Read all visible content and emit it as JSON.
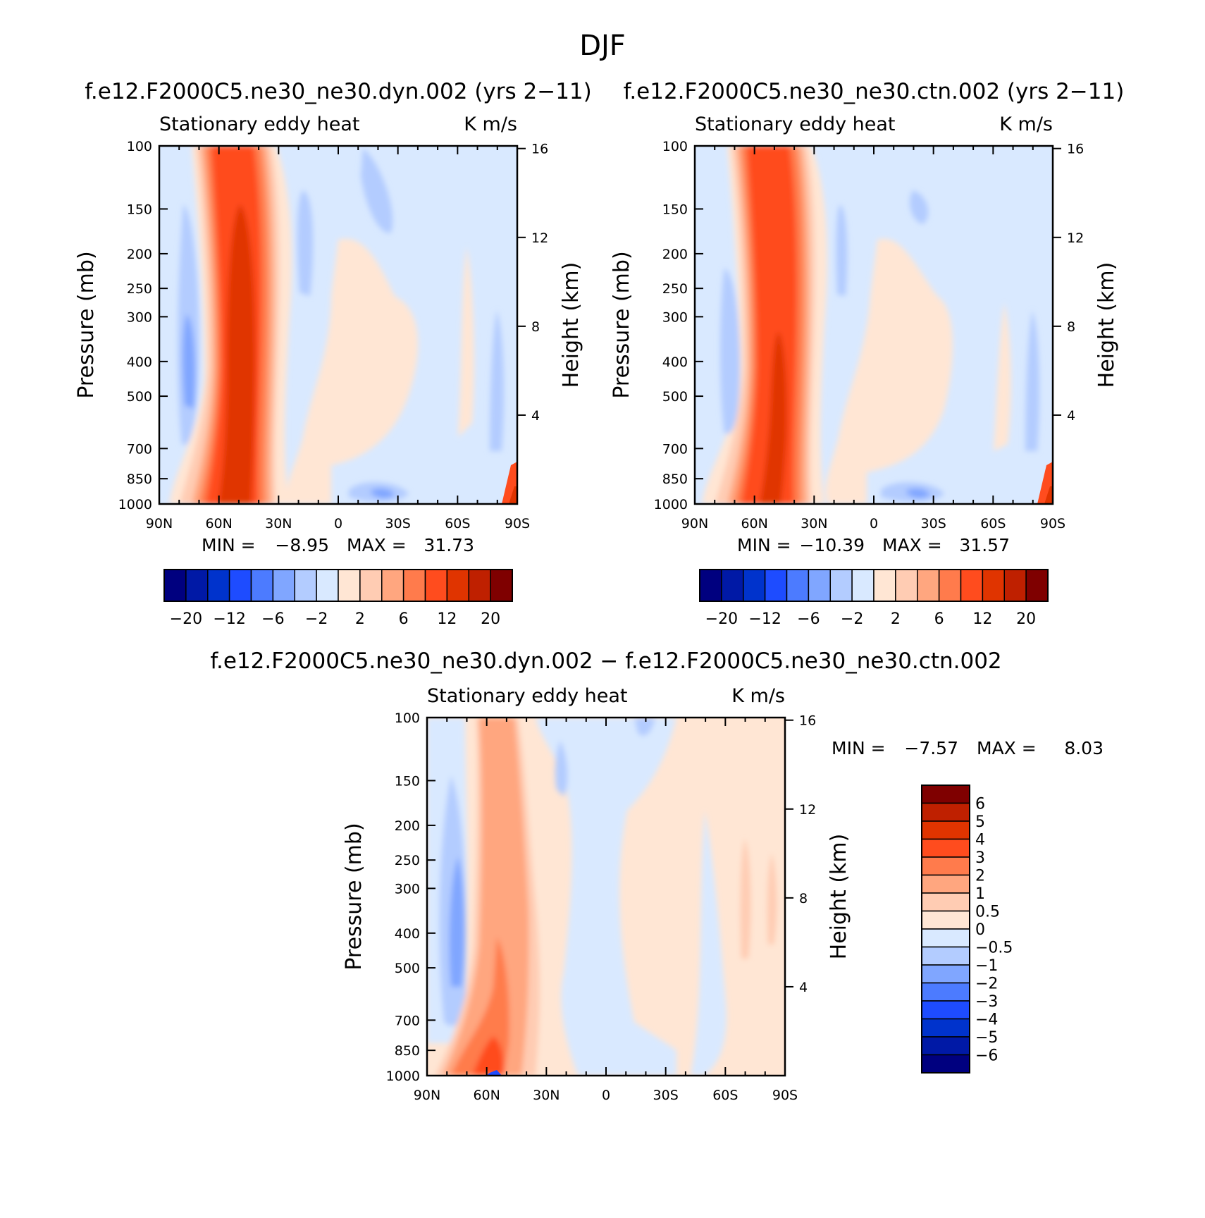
{
  "figure": {
    "title": "DJF",
    "diff_title": "f.e12.F2000C5.ne30_ne30.dyn.002 − f.e12.F2000C5.ne30_ne30.ctn.002"
  },
  "chart_data": [
    {
      "type": "heatmap",
      "title": "f.e12.F2000C5.ne30_ne30.dyn.002 (yrs 2−11)",
      "left_label": "Stationary eddy heat",
      "right_label": "K m/s",
      "ylabel": "Pressure (mb)",
      "y2label": "Height (km)",
      "x_ticks": [
        "90N",
        "60N",
        "30N",
        "0",
        "30S",
        "60S",
        "90S"
      ],
      "y_ticks": [
        "100",
        "150",
        "200",
        "250",
        "300",
        "400",
        "500",
        "700",
        "850",
        "1000"
      ],
      "y2_ticks": [
        "16",
        "12",
        "8",
        "4"
      ],
      "min_text": "MIN =",
      "min_value": "−8.95",
      "max_text": "MAX =",
      "max_value": "31.73",
      "colorbar_labels": [
        "−20",
        "−12",
        "−6",
        "−2",
        "2",
        "6",
        "12",
        "20"
      ]
    },
    {
      "type": "heatmap",
      "title": "f.e12.F2000C5.ne30_ne30.ctn.002 (yrs 2−11)",
      "left_label": "Stationary eddy heat",
      "right_label": "K m/s",
      "ylabel": "Pressure (mb)",
      "y2label": "Height (km)",
      "x_ticks": [
        "90N",
        "60N",
        "30N",
        "0",
        "30S",
        "60S",
        "90S"
      ],
      "y_ticks": [
        "100",
        "150",
        "200",
        "250",
        "300",
        "400",
        "500",
        "700",
        "850",
        "1000"
      ],
      "y2_ticks": [
        "16",
        "12",
        "8",
        "4"
      ],
      "min_text": "MIN =",
      "min_value": "−10.39",
      "max_text": "MAX =",
      "max_value": "31.57",
      "colorbar_labels": [
        "−20",
        "−12",
        "−6",
        "−2",
        "2",
        "6",
        "12",
        "20"
      ]
    },
    {
      "type": "heatmap",
      "left_label": "Stationary eddy heat",
      "right_label": "K m/s",
      "ylabel": "Pressure (mb)",
      "y2label": "Height (km)",
      "x_ticks": [
        "90N",
        "60N",
        "30N",
        "0",
        "30S",
        "60S",
        "90S"
      ],
      "y_ticks": [
        "100",
        "150",
        "200",
        "250",
        "300",
        "400",
        "500",
        "700",
        "850",
        "1000"
      ],
      "y2_ticks": [
        "16",
        "12",
        "8",
        "4"
      ],
      "min_text": "MIN =",
      "min_value": "−7.57",
      "max_text": "MAX =",
      "max_value": "8.03",
      "colorbar_labels": [
        "6",
        "5",
        "4",
        "3",
        "2",
        "1",
        "0.5",
        "0",
        "−0.5",
        "−1",
        "−2",
        "−3",
        "−4",
        "−5",
        "−6"
      ]
    }
  ],
  "colors": {
    "palette": [
      "#00007f",
      "#0019a6",
      "#0033cc",
      "#1e4cff",
      "#4c7bff",
      "#80a6ff",
      "#b3ccff",
      "#d9e9ff",
      "#ffe6d4",
      "#ffccb3",
      "#ffa67f",
      "#ff7b4c",
      "#ff4c1e",
      "#e03400",
      "#bf2000",
      "#7f0000"
    ],
    "diff_palette": [
      "#00007f",
      "#0019a6",
      "#0033cc",
      "#1e4cff",
      "#4c7bff",
      "#80a6ff",
      "#b3ccff",
      "#d9e9ff",
      "#ffe6d4",
      "#ffccb3",
      "#ffa67f",
      "#ff7b4c",
      "#ff4c1e",
      "#e03400",
      "#bf2000",
      "#7f0000"
    ]
  }
}
